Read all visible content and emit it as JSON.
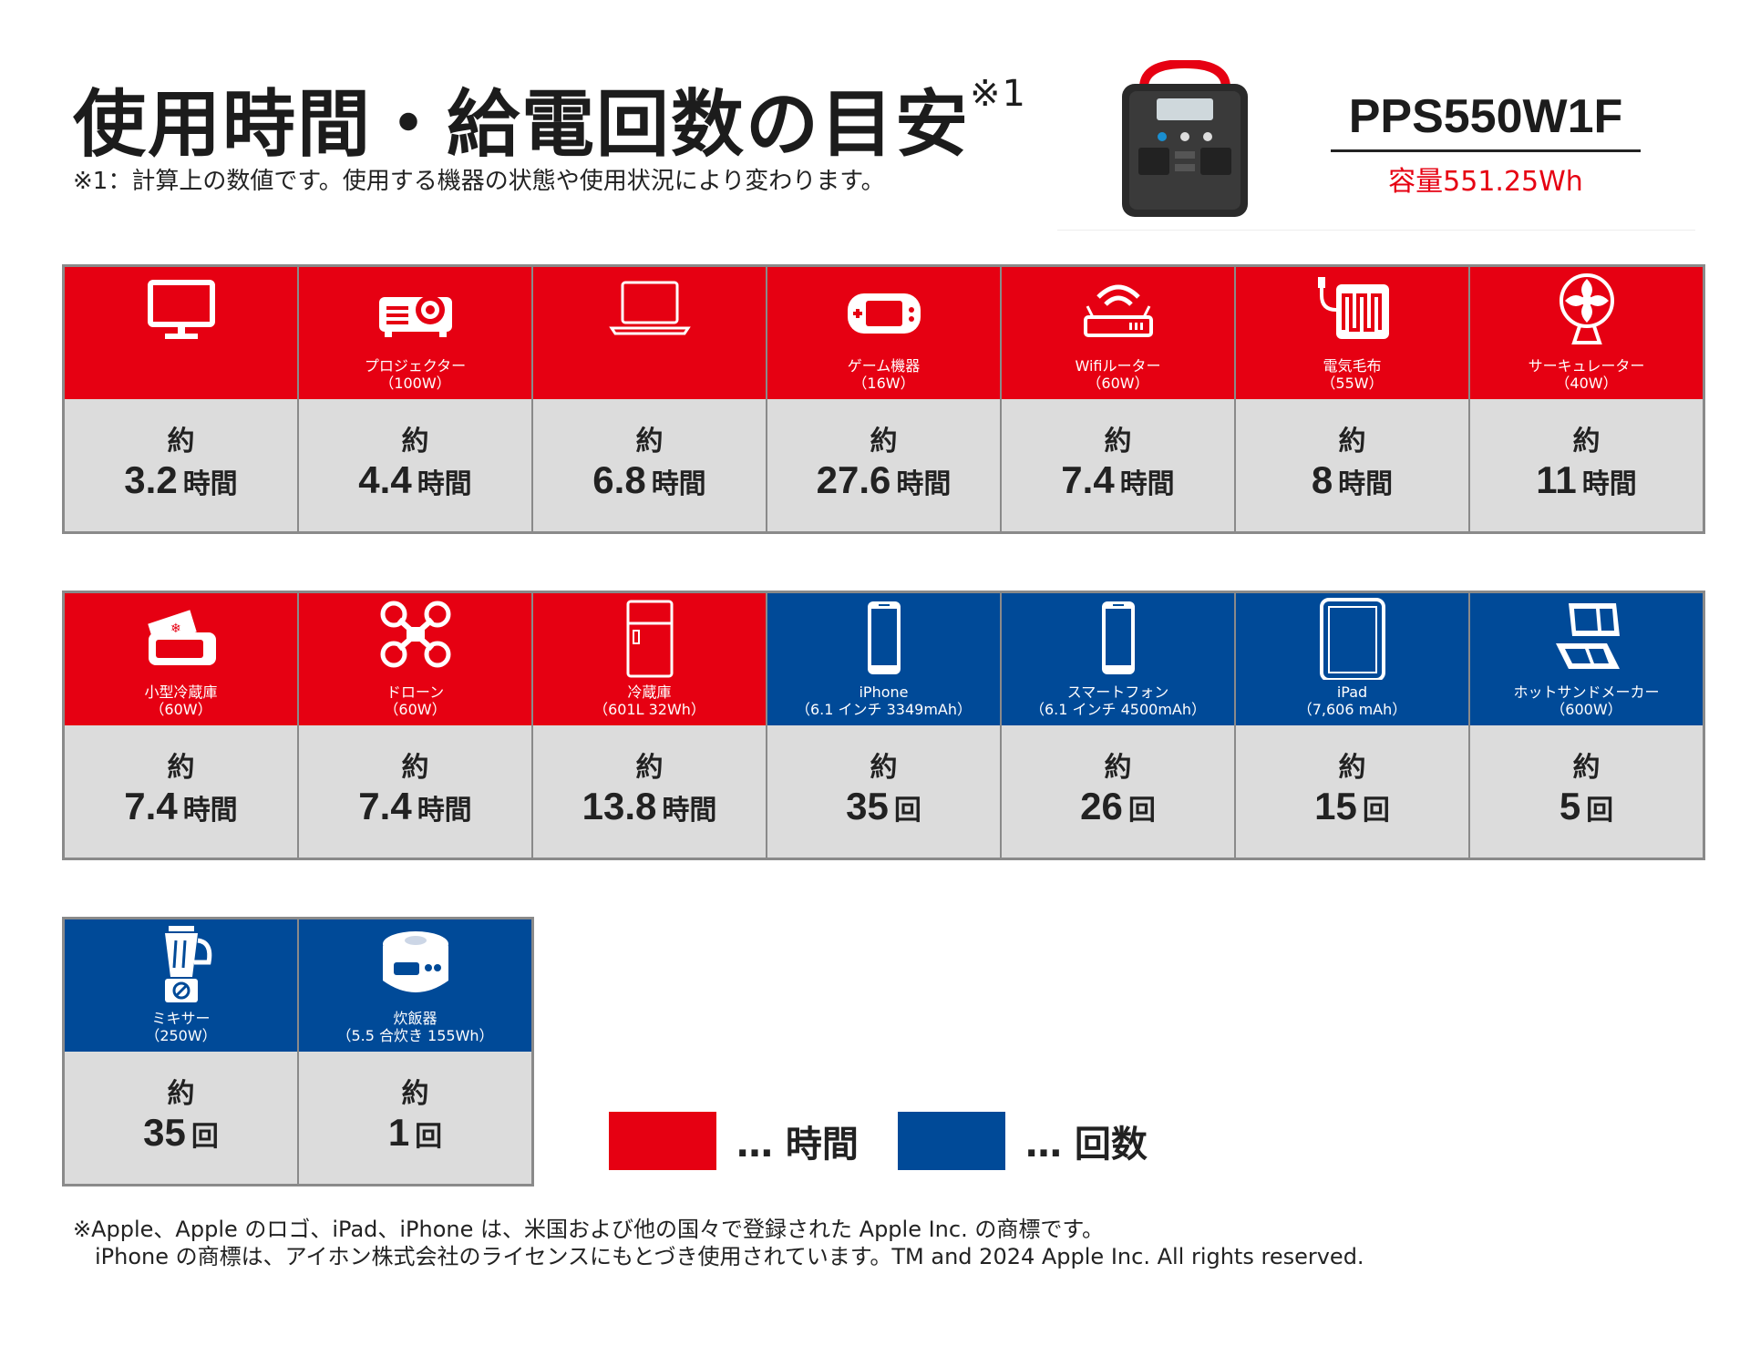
{
  "header": {
    "title": "使用時間・給電回数の目安",
    "title_sup": "※1",
    "note": "※1：計算上の数値です。使用する機器の状態や使用状況により変わります。"
  },
  "product": {
    "model": "PPS550W1F",
    "capacity": "容量551.25Wh"
  },
  "colors": {
    "time": "#e60012",
    "count": "#004a98",
    "value_bg": "#dcdcdc"
  },
  "rows": [
    [
      {
        "label": "",
        "icon": "monitor-icon",
        "color": "red",
        "approx": "約",
        "value": "3.2",
        "unit": "時間"
      },
      {
        "label": "プロジェクター\n（100W）",
        "icon": "projector-icon",
        "color": "red",
        "approx": "約",
        "value": "4.4",
        "unit": "時間"
      },
      {
        "label": "",
        "icon": "laptop-icon",
        "color": "red",
        "approx": "約",
        "value": "6.8",
        "unit": "時間"
      },
      {
        "label": "ゲーム機器\n（16W）",
        "icon": "game-console-icon",
        "color": "red",
        "approx": "約",
        "value": "27.6",
        "unit": "時間"
      },
      {
        "label": "Wifiルーター\n（60W）",
        "icon": "wifi-router-icon",
        "color": "red",
        "approx": "約",
        "value": "7.4",
        "unit": "時間"
      },
      {
        "label": "電気毛布\n（55W）",
        "icon": "electric-blanket-icon",
        "color": "red",
        "approx": "約",
        "value": "8",
        "unit": "時間"
      },
      {
        "label": "サーキュレーター\n（40W）",
        "icon": "circulator-fan-icon",
        "color": "red",
        "approx": "約",
        "value": "11",
        "unit": "時間"
      }
    ],
    [
      {
        "label": "小型冷蔵庫\n（60W）",
        "icon": "mini-fridge-icon",
        "color": "red",
        "approx": "約",
        "value": "7.4",
        "unit": "時間"
      },
      {
        "label": "ドローン\n（60W）",
        "icon": "drone-icon",
        "color": "red",
        "approx": "約",
        "value": "7.4",
        "unit": "時間"
      },
      {
        "label": "冷蔵庫\n（601L 32Wh）",
        "icon": "refrigerator-icon",
        "color": "red",
        "approx": "約",
        "value": "13.8",
        "unit": "時間"
      },
      {
        "label": "iPhone\n（6.1 インチ 3349mAh）",
        "icon": "iphone-icon",
        "color": "blue",
        "approx": "約",
        "value": "35",
        "unit": "回"
      },
      {
        "label": "スマートフォン\n（6.1 インチ 4500mAh）",
        "icon": "smartphone-icon",
        "color": "blue",
        "approx": "約",
        "value": "26",
        "unit": "回"
      },
      {
        "label": "iPad\n（7,606 mAh）",
        "icon": "ipad-icon",
        "color": "blue",
        "approx": "約",
        "value": "15",
        "unit": "回"
      },
      {
        "label": "ホットサンドメーカー\n（600W）",
        "icon": "hot-sandwich-maker-icon",
        "color": "blue",
        "approx": "約",
        "value": "5",
        "unit": "回"
      }
    ],
    [
      {
        "label": "ミキサー\n（250W）",
        "icon": "blender-icon",
        "color": "blue",
        "approx": "約",
        "value": "35",
        "unit": "回"
      },
      {
        "label": "炊飯器\n（5.5 合炊き 155Wh）",
        "icon": "rice-cooker-icon",
        "color": "blue",
        "approx": "約",
        "value": "1",
        "unit": "回"
      }
    ]
  ],
  "legend": {
    "time_label": "… 時間",
    "count_label": "… 回数"
  },
  "footer": {
    "line1": "※Apple、Apple のロゴ、iPad、iPhone は、米国および他の国々で登録された Apple Inc. の商標です。",
    "line2": "iPhone の商標は、アイホン株式会社のライセンスにもとづき使用されています。TM and 2024 Apple Inc. All rights reserved."
  }
}
